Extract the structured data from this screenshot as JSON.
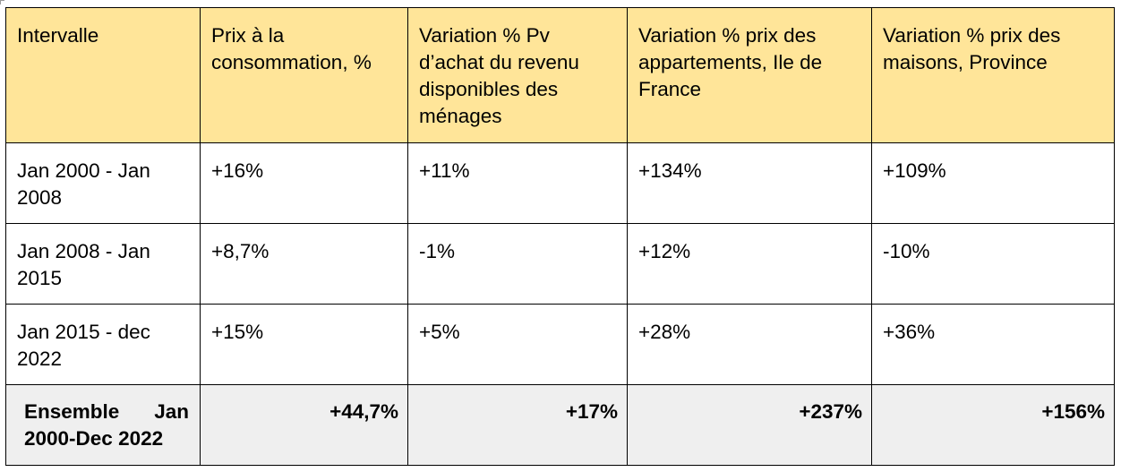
{
  "table": {
    "headers": [
      "Intervalle",
      "Prix à la consommation, %",
      "Variation % Pv d’achat du revenu disponibles des ménages",
      "Variation % prix des appartements, Ile de France",
      "Variation % prix des maisons, Province"
    ],
    "rows": [
      [
        "Jan 2000 - Jan 2008",
        "+16%",
        "+11%",
        "+134%",
        "+109%"
      ],
      [
        "Jan 2008 - Jan 2015",
        "+8,7%",
        "-1%",
        "+12%",
        "-10%"
      ],
      [
        "Jan 2015 - dec 2022",
        "+15%",
        "+5%",
        "+28%",
        "+36%"
      ]
    ],
    "total": {
      "label": "Ensemble Jan 2000-Dec 2022",
      "values": [
        "+44,7%",
        "+17%",
        "+237%",
        "+156%"
      ]
    }
  },
  "colors": {
    "header_background": "#ffe599",
    "total_background": "#efefef",
    "border": "#000000"
  }
}
